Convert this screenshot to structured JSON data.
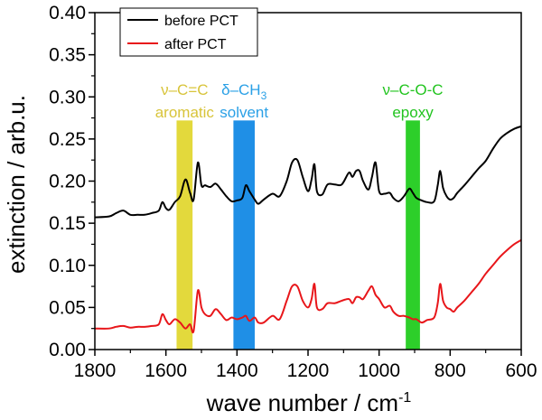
{
  "chart_data": {
    "type": "line",
    "title": "",
    "xlabel": "wave number / cm",
    "xlabel_superscript": "-1",
    "ylabel": "extinction / arb.u.",
    "xlim": [
      1800,
      600
    ],
    "ylim": [
      0.0,
      0.4
    ],
    "x_reversed": true,
    "x_ticks": [
      "1800",
      "1600",
      "1400",
      "1200",
      "1000",
      "800",
      "600"
    ],
    "y_ticks": [
      "0.00",
      "0.05",
      "0.10",
      "0.15",
      "0.20",
      "0.25",
      "0.30",
      "0.35",
      "0.40"
    ],
    "legend": {
      "placement": "top-left",
      "entries": [
        {
          "name": "before PCT",
          "color": "#000000"
        },
        {
          "name": "after PCT",
          "color": "#e8161a"
        }
      ]
    },
    "bands": [
      {
        "label_line1": "ν–C=C",
        "label_line2": "aromatic",
        "x_from": 1570,
        "x_to": 1525,
        "color": "#e3d93c",
        "text_color": "#d8c43a"
      },
      {
        "label_line1": "δ–CH",
        "label_line1_sub": "3",
        "label_line2": "solvent",
        "x_from": 1410,
        "x_to": 1350,
        "color": "#1f8fe6",
        "text_color": "#2aa0e6"
      },
      {
        "label_line1": "ν–C-O-C",
        "label_line2": "epoxy",
        "x_from": 925,
        "x_to": 885,
        "color": "#2dcf2a",
        "text_color": "#22c41f"
      }
    ],
    "band_top_value": 0.272,
    "series": [
      {
        "name": "before PCT",
        "color": "#000000",
        "x": [
          1800,
          1760,
          1740,
          1720,
          1700,
          1680,
          1660,
          1640,
          1620,
          1610,
          1600,
          1590,
          1575,
          1560,
          1545,
          1532,
          1522,
          1510,
          1500,
          1490,
          1475,
          1460,
          1445,
          1430,
          1415,
          1400,
          1385,
          1375,
          1365,
          1350,
          1340,
          1325,
          1300,
          1280,
          1260,
          1245,
          1230,
          1215,
          1200,
          1190,
          1182,
          1175,
          1160,
          1145,
          1125,
          1105,
          1085,
          1075,
          1065,
          1055,
          1045,
          1030,
          1020,
          1010,
          1000,
          985,
          970,
          960,
          945,
          930,
          915,
          905,
          895,
          880,
          865,
          845,
          835,
          828,
          820,
          810,
          800,
          790,
          780,
          760,
          740,
          720,
          700,
          680,
          660,
          640,
          620,
          600
        ],
        "values": [
          0.157,
          0.158,
          0.162,
          0.165,
          0.16,
          0.16,
          0.16,
          0.162,
          0.165,
          0.175,
          0.168,
          0.166,
          0.175,
          0.182,
          0.202,
          0.186,
          0.178,
          0.222,
          0.195,
          0.195,
          0.193,
          0.197,
          0.19,
          0.182,
          0.176,
          0.177,
          0.18,
          0.195,
          0.188,
          0.178,
          0.173,
          0.178,
          0.185,
          0.182,
          0.2,
          0.222,
          0.225,
          0.205,
          0.188,
          0.202,
          0.22,
          0.188,
          0.184,
          0.196,
          0.196,
          0.196,
          0.21,
          0.205,
          0.212,
          0.212,
          0.2,
          0.19,
          0.205,
          0.222,
          0.188,
          0.185,
          0.186,
          0.18,
          0.176,
          0.182,
          0.191,
          0.186,
          0.18,
          0.177,
          0.175,
          0.176,
          0.195,
          0.212,
          0.192,
          0.182,
          0.178,
          0.18,
          0.186,
          0.195,
          0.205,
          0.215,
          0.224,
          0.238,
          0.25,
          0.257,
          0.262,
          0.265
        ]
      },
      {
        "name": "after PCT",
        "color": "#e8161a",
        "x": [
          1800,
          1760,
          1740,
          1720,
          1700,
          1680,
          1660,
          1640,
          1620,
          1610,
          1600,
          1590,
          1575,
          1560,
          1545,
          1532,
          1522,
          1510,
          1500,
          1490,
          1475,
          1460,
          1445,
          1430,
          1415,
          1400,
          1385,
          1375,
          1365,
          1350,
          1340,
          1325,
          1300,
          1280,
          1260,
          1245,
          1230,
          1215,
          1200,
          1190,
          1182,
          1175,
          1160,
          1145,
          1125,
          1105,
          1085,
          1075,
          1065,
          1055,
          1045,
          1030,
          1020,
          1010,
          1000,
          985,
          970,
          960,
          945,
          930,
          915,
          905,
          895,
          880,
          865,
          845,
          835,
          828,
          820,
          810,
          800,
          790,
          780,
          760,
          740,
          720,
          700,
          680,
          660,
          640,
          620,
          600
        ],
        "values": [
          0.025,
          0.025,
          0.027,
          0.028,
          0.026,
          0.027,
          0.027,
          0.028,
          0.03,
          0.042,
          0.035,
          0.03,
          0.036,
          0.032,
          0.025,
          0.03,
          0.022,
          0.07,
          0.05,
          0.042,
          0.04,
          0.048,
          0.042,
          0.035,
          0.038,
          0.036,
          0.038,
          0.04,
          0.034,
          0.038,
          0.032,
          0.032,
          0.04,
          0.036,
          0.058,
          0.075,
          0.075,
          0.058,
          0.05,
          0.06,
          0.078,
          0.05,
          0.048,
          0.055,
          0.055,
          0.058,
          0.06,
          0.055,
          0.062,
          0.062,
          0.06,
          0.07,
          0.075,
          0.065,
          0.06,
          0.05,
          0.052,
          0.045,
          0.04,
          0.04,
          0.038,
          0.036,
          0.036,
          0.032,
          0.035,
          0.038,
          0.055,
          0.078,
          0.058,
          0.05,
          0.048,
          0.045,
          0.05,
          0.058,
          0.068,
          0.078,
          0.09,
          0.1,
          0.11,
          0.118,
          0.125,
          0.13
        ]
      }
    ]
  }
}
